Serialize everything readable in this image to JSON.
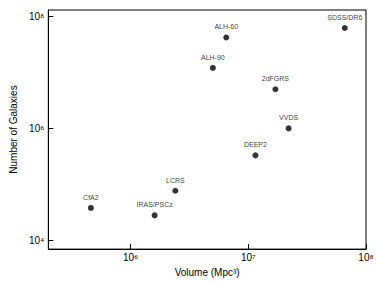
{
  "chart_data": {
    "type": "scatter",
    "x_label": "Volume (Mpc³)",
    "y_label": "Number of Galaxies",
    "labels": [
      "CfA2",
      "IRAS/PSCz",
      "LCRS",
      "ALH-90",
      "ALH-60",
      "DEEP2",
      "2dFGRS",
      "VVDS",
      "SDSS/DR6"
    ],
    "x": [
      460000,
      1600000,
      2400000,
      5000000,
      6500000,
      11500000,
      17000000,
      22000000,
      66000000
    ],
    "values": [
      38000,
      28000,
      77000,
      12000000,
      42000000,
      330000,
      5000000,
      1000000,
      62000000
    ],
    "color": "#000000",
    "marker": "circle",
    "log": true,
    "xlim": [
      200000,
      100000000
    ],
    "ylim": [
      7000,
      130000000
    ],
    "xticks": [
      {
        "value": 1000000,
        "label": "10⁶"
      },
      {
        "value": 10000000,
        "label": "10⁷"
      },
      {
        "value": 100000000,
        "label": "10⁸"
      }
    ],
    "yticks": [
      {
        "value": 10000,
        "label": "10⁴"
      },
      {
        "value": 1000000,
        "label": "10⁶"
      },
      {
        "value": 100000000,
        "label": "10⁸"
      }
    ],
    "grid": false
  }
}
